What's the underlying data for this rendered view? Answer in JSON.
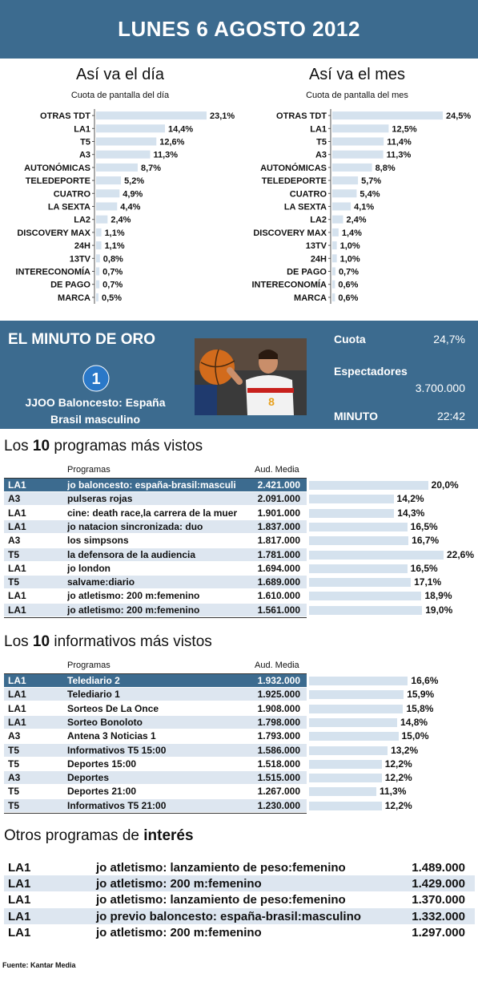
{
  "header": {
    "title": "LUNES 6 AGOSTO 2012"
  },
  "chart_data": [
    {
      "type": "bar",
      "title": "Así va el día",
      "subtitle": "Cuota de pantalla del día",
      "categories": [
        "OTRAS TDT",
        "LA1",
        "T5",
        "A3",
        "AUTONÓMICAS",
        "TELEDEPORTE",
        "CUATRO",
        "LA SEXTA",
        "LA2",
        "DISCOVERY MAX",
        "24H",
        "13TV",
        "INTERECONOMÍA",
        "DE PAGO",
        "MARCA"
      ],
      "values": [
        23.1,
        14.4,
        12.6,
        11.3,
        8.7,
        5.2,
        4.9,
        4.4,
        2.4,
        1.1,
        1.1,
        0.8,
        0.7,
        0.7,
        0.5
      ],
      "labels": [
        "23,1%",
        "14,4%",
        "12,6%",
        "11,3%",
        "8,7%",
        "5,2%",
        "4,9%",
        "4,4%",
        "2,4%",
        "1,1%",
        "1,1%",
        "0,8%",
        "0,7%",
        "0,7%",
        "0,5%"
      ]
    },
    {
      "type": "bar",
      "title": "Así va el mes",
      "subtitle": "Cuota de pantalla del mes",
      "categories": [
        "OTRAS TDT",
        "LA1",
        "T5",
        "A3",
        "AUTONÓMICAS",
        "TELEDEPORTE",
        "CUATRO",
        "LA SEXTA",
        "LA2",
        "DISCOVERY MAX",
        "13TV",
        "24H",
        "DE PAGO",
        "INTERECONOMÍA",
        "MARCA"
      ],
      "values": [
        24.5,
        12.5,
        11.4,
        11.3,
        8.8,
        5.7,
        5.4,
        4.1,
        2.4,
        1.4,
        1.0,
        1.0,
        0.7,
        0.6,
        0.6
      ],
      "labels": [
        "24,5%",
        "12,5%",
        "11,4%",
        "11,3%",
        "8,8%",
        "5,7%",
        "5,4%",
        "4,1%",
        "2,4%",
        "1,4%",
        "1,0%",
        "1,0%",
        "0,7%",
        "0,6%",
        "0,6%"
      ]
    }
  ],
  "minuto": {
    "title": "EL MINUTO DE ORO",
    "logo": "1",
    "program_line1": "JJOO Baloncesto: España",
    "program_line2": "Brasil masculino",
    "cuota_label": "Cuota",
    "cuota_value": "24,7%",
    "espectadores_label": "Espectadores",
    "espectadores_value": "3.700.000",
    "minuto_label": "MINUTO",
    "minuto_value": "22:42"
  },
  "programas": {
    "title_pre": "Los ",
    "title_num": "10",
    "title_post": " programas más vistos",
    "col_programas": "Programas",
    "col_aud": "Aud. Media",
    "rows": [
      {
        "ch": "LA1",
        "name": "jo baloncesto: españa-brasil:masculi",
        "aud": "2.421.000",
        "share": 20.0,
        "label": "20,0%"
      },
      {
        "ch": "A3",
        "name": "pulseras rojas",
        "aud": "2.091.000",
        "share": 14.2,
        "label": "14,2%"
      },
      {
        "ch": "LA1",
        "name": "cine: death race,la carrera de la muer",
        "aud": "1.901.000",
        "share": 14.3,
        "label": "14,3%"
      },
      {
        "ch": "LA1",
        "name": "jo natacion sincronizada: duo",
        "aud": "1.837.000",
        "share": 16.5,
        "label": "16,5%"
      },
      {
        "ch": "A3",
        "name": "los simpsons",
        "aud": "1.817.000",
        "share": 16.7,
        "label": "16,7%"
      },
      {
        "ch": "T5",
        "name": "la defensora de la audiencia",
        "aud": "1.781.000",
        "share": 22.6,
        "label": "22,6%"
      },
      {
        "ch": "LA1",
        "name": "jo london",
        "aud": "1.694.000",
        "share": 16.5,
        "label": "16,5%"
      },
      {
        "ch": "T5",
        "name": "salvame:diario",
        "aud": "1.689.000",
        "share": 17.1,
        "label": "17,1%"
      },
      {
        "ch": "LA1",
        "name": "jo atletismo: 200 m:femenino",
        "aud": "1.610.000",
        "share": 18.9,
        "label": "18,9%"
      },
      {
        "ch": "LA1",
        "name": "jo atletismo: 200 m:femenino",
        "aud": "1.561.000",
        "share": 19.0,
        "label": "19,0%"
      }
    ]
  },
  "informativos": {
    "title_pre": "Los ",
    "title_num": "10",
    "title_post": " informativos más vistos",
    "col_programas": "Programas",
    "col_aud": "Aud. Media",
    "rows": [
      {
        "ch": "LA1",
        "name": "Telediario 2",
        "aud": "1.932.000",
        "share": 16.6,
        "label": "16,6%"
      },
      {
        "ch": "LA1",
        "name": "Telediario 1",
        "aud": "1.925.000",
        "share": 15.9,
        "label": "15,9%"
      },
      {
        "ch": "LA1",
        "name": "Sorteos De La Once",
        "aud": "1.908.000",
        "share": 15.8,
        "label": "15,8%"
      },
      {
        "ch": "LA1",
        "name": "Sorteo Bonoloto",
        "aud": "1.798.000",
        "share": 14.8,
        "label": "14,8%"
      },
      {
        "ch": "A3",
        "name": "Antena 3 Noticias 1",
        "aud": "1.793.000",
        "share": 15.0,
        "label": "15,0%"
      },
      {
        "ch": "T5",
        "name": "Informativos T5 15:00",
        "aud": "1.586.000",
        "share": 13.2,
        "label": "13,2%"
      },
      {
        "ch": "T5",
        "name": "Deportes 15:00",
        "aud": "1.518.000",
        "share": 12.2,
        "label": "12,2%"
      },
      {
        "ch": "A3",
        "name": "Deportes",
        "aud": "1.515.000",
        "share": 12.2,
        "label": "12,2%"
      },
      {
        "ch": "T5",
        "name": "Deportes 21:00",
        "aud": "1.267.000",
        "share": 11.3,
        "label": "11,3%"
      },
      {
        "ch": "T5",
        "name": "Informativos T5 21:00",
        "aud": "1.230.000",
        "share": 12.2,
        "label": "12,2%"
      }
    ]
  },
  "otros": {
    "title_pre": "Otros programas de ",
    "title_bold": "interés",
    "rows": [
      {
        "ch": "LA1",
        "name": "jo atletismo: lanzamiento de peso:femenino",
        "aud": "1.489.000"
      },
      {
        "ch": "LA1",
        "name": "jo atletismo: 200 m:femenino",
        "aud": "1.429.000"
      },
      {
        "ch": "LA1",
        "name": "jo atletismo: lanzamiento de peso:femenino",
        "aud": "1.370.000"
      },
      {
        "ch": "LA1",
        "name": "jo previo baloncesto: españa-brasil:masculino",
        "aud": "1.332.000"
      },
      {
        "ch": "LA1",
        "name": "jo atletismo: 200 m:femenino",
        "aud": "1.297.000"
      }
    ]
  },
  "footer": {
    "source": "Fuente:  Kantar Media"
  }
}
